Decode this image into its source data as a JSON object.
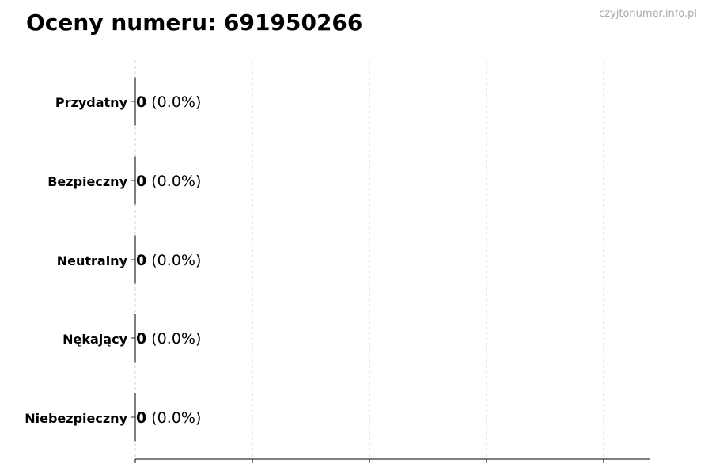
{
  "chart_data": {
    "type": "bar",
    "orientation": "horizontal",
    "title": "Oceny numeru: 691950266",
    "watermark": "czyjtonumer.info.pl",
    "categories": [
      "Przydatny",
      "Bezpieczny",
      "Neutralny",
      "Nękający",
      "Niebezpieczny"
    ],
    "values": [
      0,
      0,
      0,
      0,
      0
    ],
    "data_labels": [
      {
        "count": "0",
        "percent": "(0.0%)"
      },
      {
        "count": "0",
        "percent": "(0.0%)"
      },
      {
        "count": "0",
        "percent": "(0.0%)"
      },
      {
        "count": "0",
        "percent": "(0.0%)"
      },
      {
        "count": "0",
        "percent": "(0.0%)"
      }
    ],
    "xlabel": "",
    "ylabel": "",
    "x_tick_labels_shown": false,
    "grid": "vertical dashed",
    "colors": {
      "bar_edge": "#000000",
      "grid": "#cccccc",
      "watermark": "#aaaaaa"
    }
  }
}
